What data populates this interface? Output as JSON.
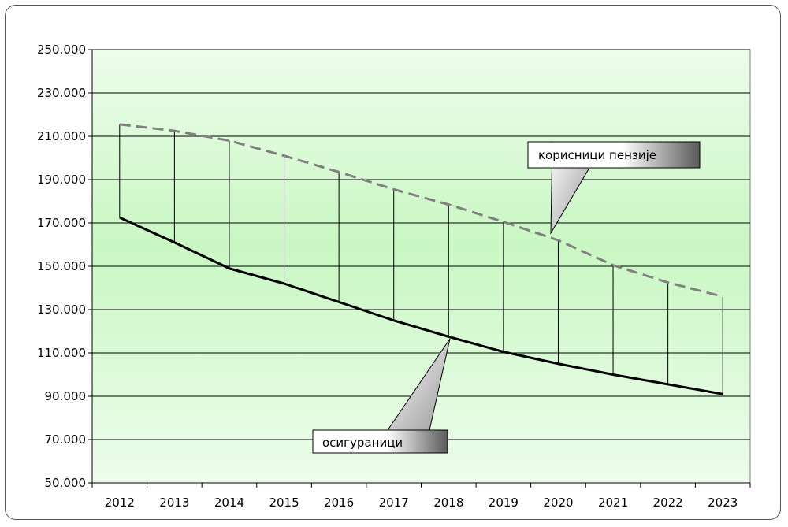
{
  "chart_data": {
    "type": "line",
    "title": "",
    "xlabel": "",
    "ylabel": "",
    "categories": [
      "2012",
      "2013",
      "2014",
      "2015",
      "2016",
      "2017",
      "2018",
      "2019",
      "2020",
      "2021",
      "2022",
      "2023"
    ],
    "series": [
      {
        "name": "корисници пензије",
        "style": "dashed",
        "color": "#808080",
        "values": [
          215500,
          212500,
          208000,
          201000,
          193500,
          185500,
          178500,
          170500,
          162000,
          150500,
          142500,
          136000
        ]
      },
      {
        "name": "осигураници",
        "style": "solid",
        "color": "#000000",
        "values": [
          172500,
          161000,
          149000,
          142000,
          133500,
          125000,
          117500,
          110500,
          105000,
          100000,
          95500,
          91000
        ]
      }
    ],
    "ylim": [
      50000,
      250000
    ],
    "ytick_step": 20000,
    "yticks": [
      "50.000",
      "70.000",
      "90.000",
      "110.000",
      "130.000",
      "150.000",
      "170.000",
      "190.000",
      "210.000",
      "230.000",
      "250.000"
    ],
    "grid": true,
    "drop_lines": true,
    "plot_background": "gradient-green",
    "legend": "callouts"
  }
}
